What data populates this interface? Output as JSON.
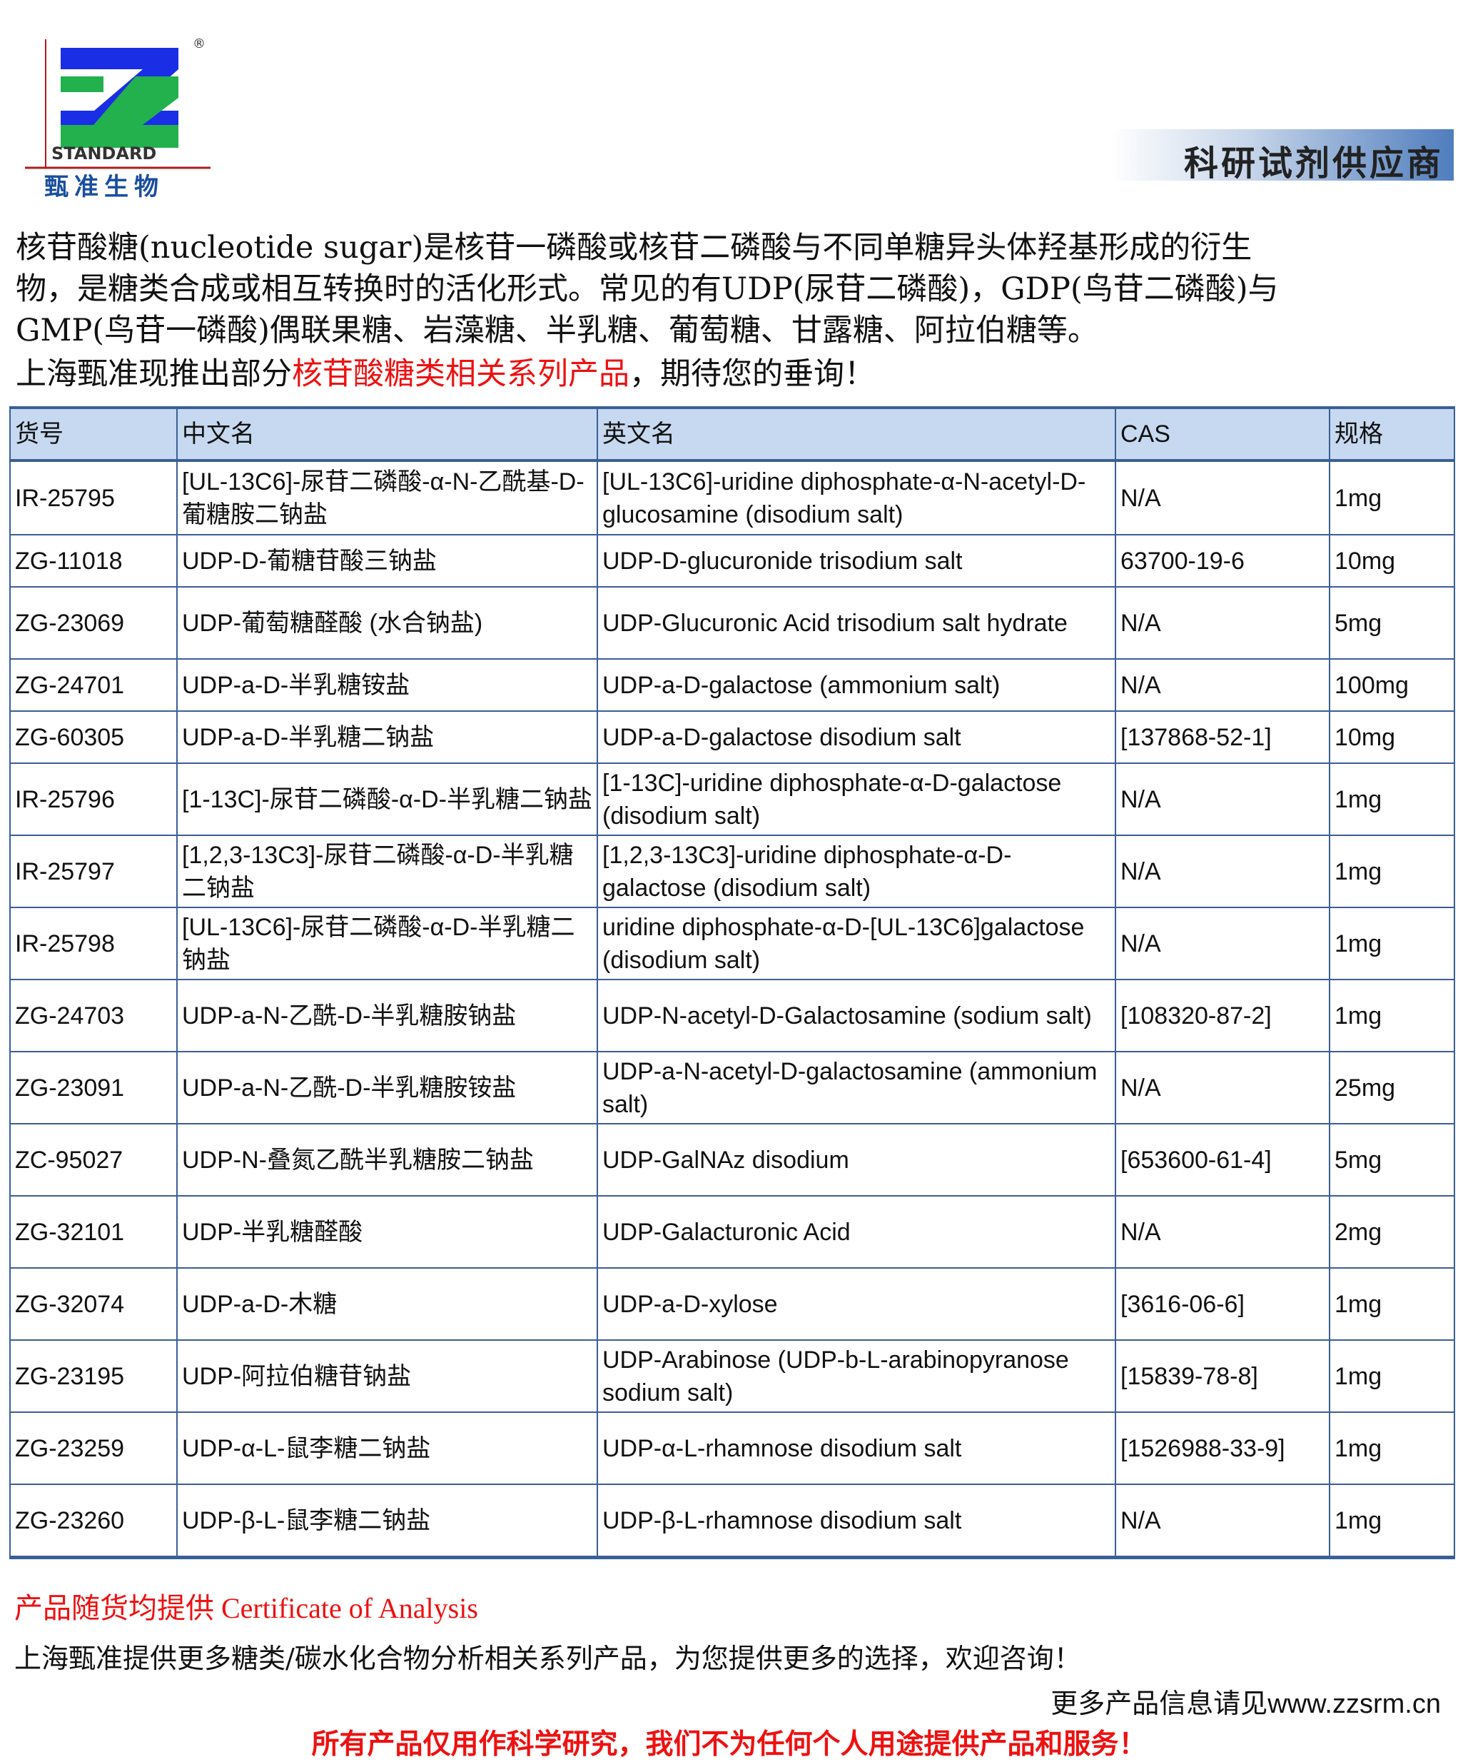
{
  "logo": {
    "wordmark": "STANDARD",
    "cn_name": "甄准生物",
    "registered": "®",
    "colors": {
      "blue": "#1a2ee6",
      "green": "#22b14c",
      "red": "#b01c1c"
    }
  },
  "header": {
    "tagline": "科研试剂供应商"
  },
  "intro": {
    "line1": "核苷酸糖(nucleotide sugar)是核苷一磷酸或核苷二磷酸与不同单糖异头体羟基形成的衍生",
    "line2": "物，是糖类合成或相互转换时的活化形式。常见的有UDP(尿苷二磷酸)，GDP(鸟苷二磷酸)与",
    "line3": "GMP(鸟苷一磷酸)偶联果糖、岩藻糖、半乳糖、葡萄糖、甘露糖、阿拉伯糖等。",
    "line4_prefix": "上海甄准现推出部分",
    "line4_highlight": "核苷酸糖类相关系列产品",
    "line4_suffix": "，期待您的垂询！"
  },
  "table": {
    "headers": [
      "货号",
      "中文名",
      "英文名",
      "CAS",
      "规格"
    ],
    "rows": [
      [
        "IR-25795",
        "[UL-13C6]-尿苷二磷酸-α-N-乙酰基-D-葡糖胺二钠盐",
        "[UL-13C6]-uridine diphosphate-α-N-acetyl-D-glucosamine (disodium salt)",
        "N/A",
        "1mg"
      ],
      [
        "ZG-11018",
        "UDP-D-葡糖苷酸三钠盐",
        "UDP-D-glucuronide trisodium salt",
        "63700-19-6",
        "10mg"
      ],
      [
        "ZG-23069",
        "UDP-葡萄糖醛酸 (水合钠盐)",
        "UDP-Glucuronic Acid trisodium salt hydrate",
        "N/A",
        "5mg"
      ],
      [
        "ZG-24701",
        "UDP-a-D-半乳糖铵盐",
        "UDP-a-D-galactose (ammonium salt)",
        "N/A",
        "100mg"
      ],
      [
        "ZG-60305",
        "UDP-a-D-半乳糖二钠盐",
        "UDP-a-D-galactose disodium salt",
        "[137868-52-1]",
        "10mg"
      ],
      [
        "IR-25796",
        "[1-13C]-尿苷二磷酸-α-D-半乳糖二钠盐",
        "[1-13C]-uridine diphosphate-α-D-galactose (disodium salt)",
        "N/A",
        "1mg"
      ],
      [
        "IR-25797",
        "[1,2,3-13C3]-尿苷二磷酸-α-D-半乳糖二钠盐",
        "[1,2,3-13C3]-uridine diphosphate-α-D-galactose (disodium salt)",
        "N/A",
        "1mg"
      ],
      [
        "IR-25798",
        "[UL-13C6]-尿苷二磷酸-α-D-半乳糖二钠盐",
        "uridine diphosphate-α-D-[UL-13C6]galactose (disodium salt)",
        "N/A",
        "1mg"
      ],
      [
        "ZG-24703",
        "UDP-a-N-乙酰-D-半乳糖胺钠盐",
        "UDP-N-acetyl-D-Galactosamine (sodium salt)",
        "[108320-87-2]",
        "1mg"
      ],
      [
        "ZG-23091",
        "UDP-a-N-乙酰-D-半乳糖胺铵盐",
        "UDP-a-N-acetyl-D-galactosamine (ammonium salt)",
        "N/A",
        "25mg"
      ],
      [
        "ZC-95027",
        "UDP-N-叠氮乙酰半乳糖胺二钠盐",
        "UDP-GalNAz disodium",
        "[653600-61-4]",
        "5mg"
      ],
      [
        "ZG-32101",
        "UDP-半乳糖醛酸",
        "UDP-Galacturonic Acid",
        "N/A",
        "2mg"
      ],
      [
        "ZG-32074",
        "UDP-a-D-木糖",
        "UDP-a-D-xylose",
        "[3616-06-6]",
        "1mg"
      ],
      [
        "ZG-23195",
        "UDP-阿拉伯糖苷钠盐",
        "UDP-Arabinose (UDP-b-L-arabinopyranose sodium salt)",
        "[15839-78-8]",
        "1mg"
      ],
      [
        "ZG-23259",
        "UDP-α-L-鼠李糖二钠盐",
        "UDP-α-L-rhamnose disodium salt",
        "[1526988-33-9]",
        "1mg"
      ],
      [
        "ZG-23260",
        "UDP-β-L-鼠李糖二钠盐",
        "UDP-β-L-rhamnose disodium salt",
        "N/A",
        "1mg"
      ]
    ]
  },
  "footer": {
    "coa": "产品随货均提供 Certificate of Analysis",
    "more": "上海甄准提供更多糖类/碳水化合物分析相关系列产品，为您提供更多的选择，欢迎咨询！",
    "site_prefix": "更多产品信息请见",
    "site_url": "www.zzsrm.cn",
    "disclaimer": "所有产品仅用作科学研究，我们不为任何个人用途提供产品和服务！"
  }
}
